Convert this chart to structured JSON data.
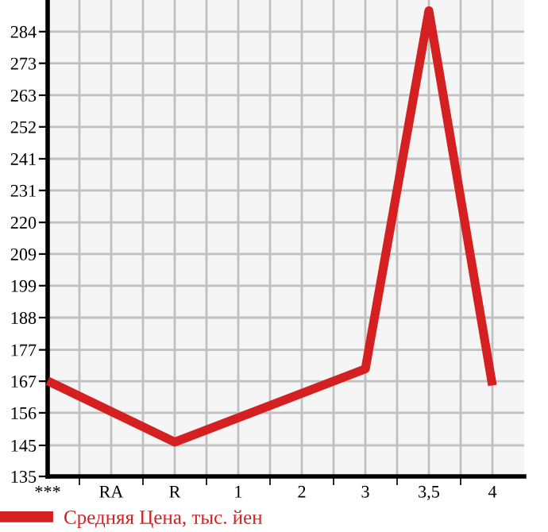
{
  "chart_data": {
    "type": "line",
    "categories": [
      "***",
      "RA",
      "R",
      "1",
      "2",
      "3",
      "3,5",
      "4"
    ],
    "series": [
      {
        "name": "Средняя Цена, тыс. йен",
        "color": "#d42020",
        "values": [
          167,
          null,
          146.5,
          null,
          null,
          171,
          291,
          165.5
        ]
      }
    ],
    "ylim": [
      135,
      294.6
    ],
    "yticks": [
      135,
      {
        "value": 145.4,
        "label": "145"
      },
      {
        "value": 156.3,
        "label": "156"
      },
      {
        "value": 166.9,
        "label": "167"
      },
      {
        "value": 177.4,
        "label": "177"
      },
      {
        "value": 188.2,
        "label": "188"
      },
      {
        "value": 198.9,
        "label": "199"
      },
      {
        "value": 209.5,
        "label": "209"
      },
      {
        "value": 220.1,
        "label": "220"
      },
      {
        "value": 230.8,
        "label": "231"
      },
      {
        "value": 241.4,
        "label": "241"
      },
      {
        "value": 252.1,
        "label": "252"
      },
      {
        "value": 262.7,
        "label": "263"
      },
      {
        "value": 273.4,
        "label": "273"
      },
      {
        "value": 284.0,
        "label": "284"
      }
    ],
    "grid": true,
    "legend": "bottom",
    "marker": "none",
    "line_style": "solid"
  }
}
